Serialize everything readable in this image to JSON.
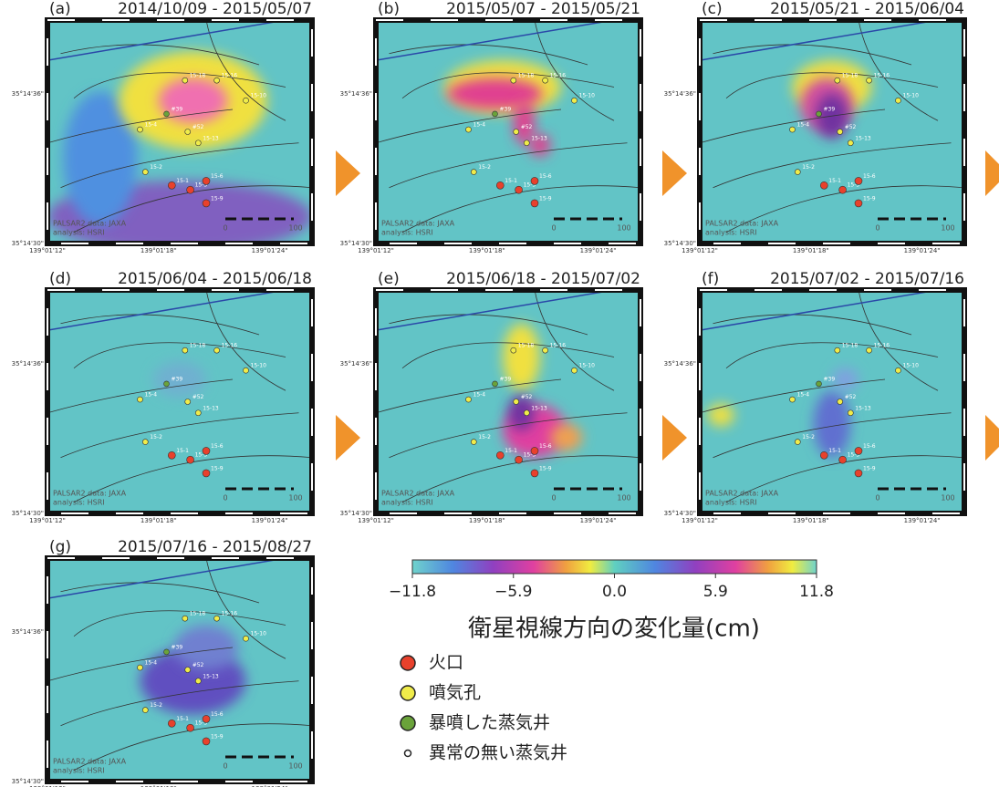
{
  "panels": [
    {
      "label": "(a)",
      "period": "2014/10/09 - 2015/05/07"
    },
    {
      "label": "(b)",
      "period": "2015/05/07 - 2015/05/21"
    },
    {
      "label": "(c)",
      "period": "2015/05/21 - 2015/06/04"
    },
    {
      "label": "(d)",
      "period": "2015/06/04 - 2015/06/18"
    },
    {
      "label": "(e)",
      "period": "2015/06/18 - 2015/07/02"
    },
    {
      "label": "(f)",
      "period": "2015/07/02 - 2015/07/16"
    },
    {
      "label": "(g)",
      "period": "2015/07/16 - 2015/08/27"
    }
  ],
  "map_labels": {
    "lat": [
      "35°14'36\"",
      "35°14'30\""
    ],
    "lon": [
      "139°01'12\"",
      "139°01'18\"",
      "139°01'24\""
    ],
    "credit": [
      "PALSAR2 data: JAXA",
      "analysis: HSRI"
    ],
    "scale": [
      "0",
      "100"
    ],
    "wells": [
      "15-18",
      "15-16",
      "#39",
      "15-10",
      "15-4",
      "#52",
      "15-13",
      "15-2",
      "15-1",
      "15-3",
      "15-6",
      "15-9"
    ]
  },
  "colorbar": {
    "title": "衛星視線方向の変化量(cm)",
    "ticks": [
      {
        "value": -11.8,
        "label": "−11.8"
      },
      {
        "value": -5.9,
        "label": "−5.9"
      },
      {
        "value": 0,
        "label": "0.0"
      },
      {
        "value": 5.9,
        "label": "5.9"
      },
      {
        "value": 11.8,
        "label": "11.8"
      }
    ],
    "lim": [
      -11.8,
      11.8
    ]
  },
  "legend": [
    {
      "label": "火口",
      "color": "#e8412c"
    },
    {
      "label": "噴気孔",
      "color": "#f0ec4a"
    },
    {
      "label": "暴噴した蒸気井",
      "color": "#6aa33a"
    },
    {
      "label": "異常の無い蒸気井",
      "color": "#ffffff"
    }
  ]
}
